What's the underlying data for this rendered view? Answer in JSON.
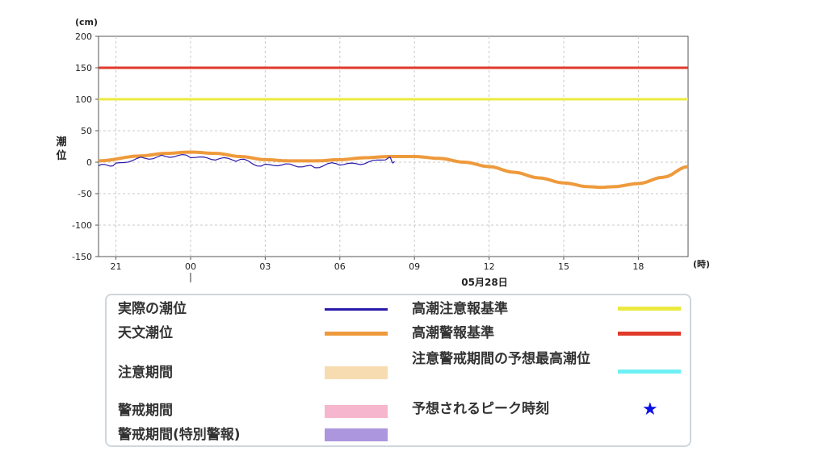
{
  "chart_data": {
    "type": "line",
    "y_unit_label": "(cm)",
    "ylabel": "潮位",
    "x_unit_label": "(時)",
    "date_label": "05月28日",
    "ylim": [
      -150,
      200
    ],
    "y_ticks": [
      200,
      150,
      100,
      50,
      0,
      -50,
      -100,
      -150
    ],
    "x_ticks": [
      {
        "hour": -3,
        "label": "21"
      },
      {
        "hour": 0,
        "label": "00"
      },
      {
        "hour": 3,
        "label": "03"
      },
      {
        "hour": 6,
        "label": "06"
      },
      {
        "hour": 9,
        "label": "09"
      },
      {
        "hour": 12,
        "label": "12"
      },
      {
        "hour": 15,
        "label": "15"
      },
      {
        "hour": 18,
        "label": "18"
      }
    ],
    "xlim_hours": [
      -3.7,
      20
    ],
    "grid": true,
    "thresholds": [
      {
        "name": "高潮警報基準",
        "value": 150,
        "color": "#e03a2a"
      },
      {
        "name": "高潮注意報基準",
        "value": 100,
        "color": "#ecea40"
      }
    ],
    "series": [
      {
        "name": "天文潮位",
        "color": "#ee9a3c",
        "x_hours": [
          -3.7,
          -2,
          -1,
          0,
          1,
          2,
          3,
          4,
          5,
          6,
          7,
          8,
          9,
          10,
          11,
          12,
          13,
          14,
          15,
          16,
          16.5,
          17,
          18,
          19,
          20
        ],
        "values": [
          2,
          10,
          14,
          16,
          14,
          9,
          4,
          2,
          2,
          4,
          7,
          9,
          9,
          6,
          0,
          -7,
          -16,
          -25,
          -33,
          -39,
          -40,
          -39,
          -34,
          -24,
          -7
        ]
      },
      {
        "name": "実際の潮位",
        "color": "#2a1aa8",
        "x_hours": [
          -3.7,
          -3,
          -2,
          -1,
          0,
          1,
          2,
          3,
          4,
          5,
          6,
          7,
          8,
          8.2
        ],
        "values": [
          -7,
          -2,
          5,
          11,
          8,
          6,
          2,
          -4,
          -5,
          -6,
          -4,
          -1,
          5,
          1
        ]
      }
    ]
  },
  "legend": {
    "left": [
      {
        "label": "実際の潮位",
        "kind": "line",
        "color": "#2a1aa8"
      },
      {
        "label": "天文潮位",
        "kind": "thick",
        "color": "#ee9a3c"
      },
      {
        "label": "注意期間",
        "kind": "rect",
        "color": "#f8dcb1"
      },
      {
        "label": "警戒期間",
        "kind": "rect",
        "color": "#f6b6cd"
      },
      {
        "label": "警戒期間(特別警報)",
        "kind": "rect",
        "color": "#ac96dd"
      }
    ],
    "right": [
      {
        "label": "高潮注意報基準",
        "kind": "thick",
        "color": "#ecea40"
      },
      {
        "label": "高潮警報基準",
        "kind": "thick",
        "color": "#e03a2a"
      },
      {
        "label": "注意警戒期間の予想最高潮位",
        "kind": "thick",
        "color": "#6ef0f4"
      },
      {
        "label": "予想されるピーク時刻",
        "kind": "star",
        "color": "#0a10e6",
        "symbol": "★"
      }
    ]
  }
}
